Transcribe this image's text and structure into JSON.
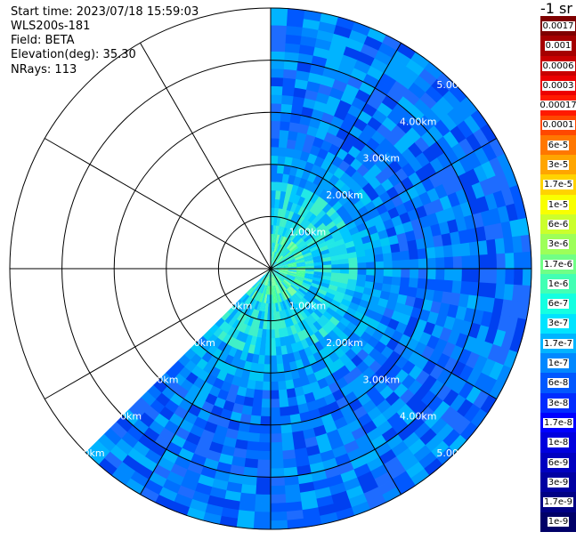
{
  "info": {
    "start_time": "Start time: 2023/07/18 15:59:03",
    "instrument": "WLS200s-181",
    "field": "Field: BETA",
    "elevation": "Elevation(deg): 35.30",
    "nrays": "NRays: 113"
  },
  "ppi": {
    "max_range_km": 5.0,
    "ring_labels": [
      "1.00km",
      "2.00km",
      "3.00km",
      "4.00km",
      "5.00km"
    ],
    "spokes_deg": [
      0,
      30,
      60,
      90,
      120,
      150,
      180,
      210,
      240,
      270,
      300,
      330
    ],
    "data_sector_deg": [
      0,
      225
    ],
    "grid_color": "#000000",
    "label_color": "#ffffff"
  },
  "colorbar": {
    "unit": "-1 sr",
    "labels": [
      "0.0017",
      "0.001",
      "0.0006",
      "0.0003",
      "0.00017",
      "0.0001",
      "6e-5",
      "3e-5",
      "1.7e-5",
      "1e-5",
      "6e-6",
      "3e-6",
      "1.7e-6",
      "1e-6",
      "6e-7",
      "3e-7",
      "1.7e-7",
      "1e-7",
      "6e-8",
      "3e-8",
      "1.7e-8",
      "1e-8",
      "6e-9",
      "3e-9",
      "1.7e-9",
      "1e-9"
    ],
    "colors": [
      "#7f0000",
      "#a50000",
      "#c80000",
      "#ec0000",
      "#ff1a00",
      "#ff4800",
      "#ff7700",
      "#ffa500",
      "#ffd300",
      "#f9ff00",
      "#cbff2c",
      "#9dff59",
      "#70ff86",
      "#42ffb4",
      "#14ffe1",
      "#00e4ff",
      "#00b4ff",
      "#0088ff",
      "#0058ff",
      "#002cff",
      "#0000ff",
      "#0000de",
      "#0000c0",
      "#0000a2",
      "#000084",
      "#000068"
    ]
  }
}
